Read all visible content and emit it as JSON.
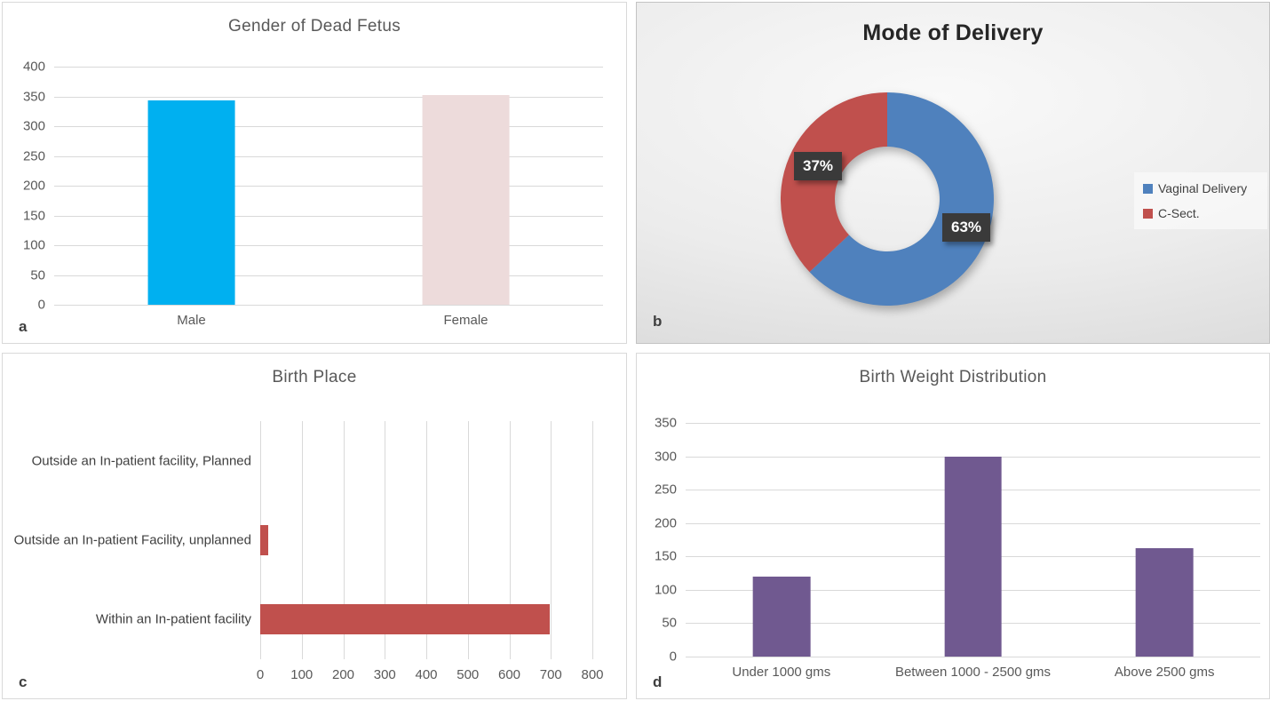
{
  "panels": {
    "a": {
      "corner_label": "a"
    },
    "b": {
      "corner_label": "b"
    },
    "c": {
      "corner_label": "c"
    },
    "d": {
      "corner_label": "d"
    }
  },
  "chart_data": [
    {
      "type": "bar",
      "title": "Gender of Dead Fetus",
      "categories": [
        "Male",
        "Female"
      ],
      "values": [
        343,
        352
      ],
      "colors": [
        "#00B0F0",
        "#EDDBDB"
      ],
      "ylim": [
        0,
        400
      ],
      "ytick_step": 50,
      "grid": true,
      "legend_position": "none"
    },
    {
      "type": "donut",
      "title": "Mode of Delivery",
      "slices": [
        {
          "label": "Vaginal Delivery",
          "value": 63,
          "data_label": "63%",
          "color": "#4F81BD"
        },
        {
          "label": "C-Sect.",
          "value": 37,
          "data_label": "37%",
          "color": "#C0504D"
        }
      ],
      "start_angle_deg": 0,
      "direction": "clockwise",
      "hole_ratio": 0.49,
      "legend_position": "right",
      "data_label_bg": "#3A3A3A",
      "data_label_color": "#FFFFFF"
    },
    {
      "type": "hbar",
      "title": "Birth Place",
      "categories": [
        "Outside an In-patient facility, Planned",
        "Outside an In-patient Facility, unplanned",
        "Within an In-patient facility"
      ],
      "values": [
        0,
        20,
        697
      ],
      "color": "#C0504D",
      "xlim": [
        0,
        800
      ],
      "xtick_step": 100,
      "grid": true,
      "legend_position": "none"
    },
    {
      "type": "bar",
      "title": "Birth Weight Distribution",
      "categories": [
        "Under 1000 gms",
        "Between 1000 - 2500 gms",
        "Above 2500 gms"
      ],
      "values": [
        120,
        299,
        162
      ],
      "colors": [
        "#705990",
        "#705990",
        "#705990"
      ],
      "ylim": [
        0,
        350
      ],
      "ytick_step": 50,
      "grid": true,
      "legend_position": "none"
    }
  ]
}
